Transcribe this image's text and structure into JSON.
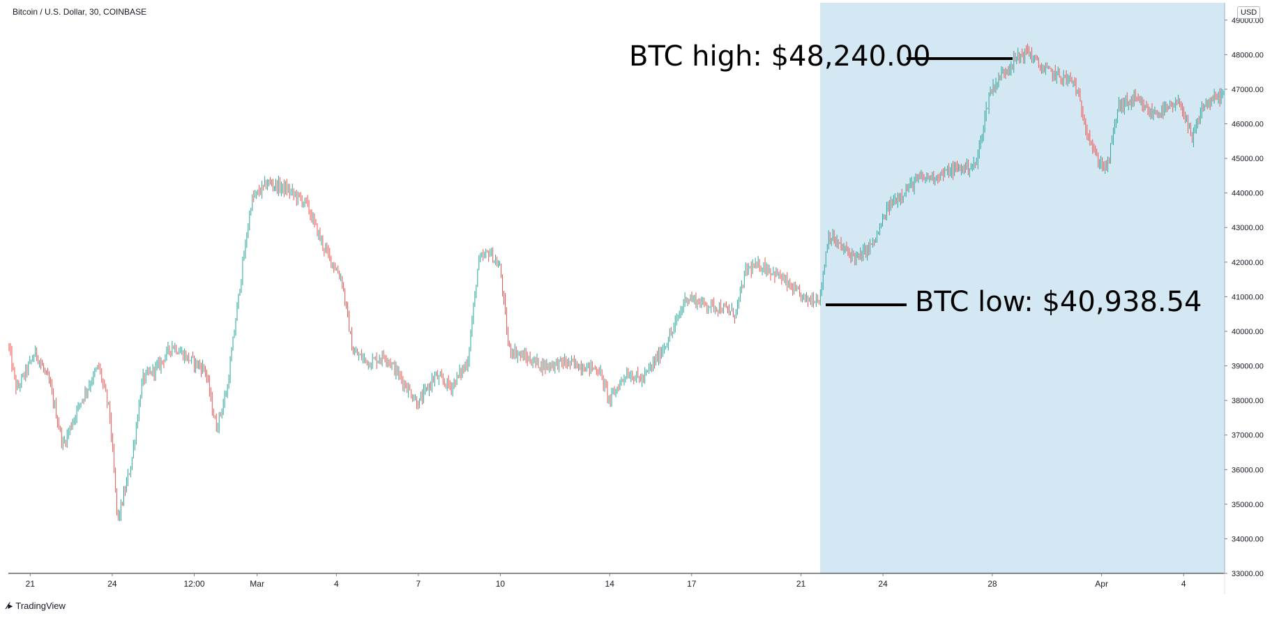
{
  "header": {
    "symbol": "Bitcoin / U.S. Dollar, 30, COINBASE",
    "currency": "USD"
  },
  "footer": {
    "brand": "TradingView"
  },
  "annotations": {
    "high": "BTC high: $48,240.00",
    "low": "BTC low: $40,938.54"
  },
  "colors": {
    "up": "#26a69a",
    "down": "#ef5350",
    "highlight": "#d4e8f3",
    "axis": "#131722"
  },
  "chart_data": {
    "type": "candlestick",
    "title": "Bitcoin / U.S. Dollar, 30, COINBASE",
    "y_unit": "USD",
    "ylim": [
      33000,
      49500
    ],
    "y_ticks": [
      "33000.00",
      "34000.00",
      "35000.00",
      "36000.00",
      "37000.00",
      "38000.00",
      "39000.00",
      "40000.00",
      "41000.00",
      "42000.00",
      "43000.00",
      "44000.00",
      "45000.00",
      "46000.00",
      "47000.00",
      "48000.00",
      "49000.00"
    ],
    "x_ticks": [
      {
        "label": "21",
        "t": 0.8
      },
      {
        "label": "24",
        "t": 3.8
      },
      {
        "label": "12:00",
        "t": 6.8
      },
      {
        "label": "Mar",
        "t": 9.1
      },
      {
        "label": "4",
        "t": 12.0
      },
      {
        "label": "7",
        "t": 15.0
      },
      {
        "label": "10",
        "t": 18.0
      },
      {
        "label": "14",
        "t": 22.0
      },
      {
        "label": "17",
        "t": 25.0
      },
      {
        "label": "21",
        "t": 29.0
      },
      {
        "label": "24",
        "t": 32.0
      },
      {
        "label": "28",
        "t": 36.0
      },
      {
        "label": "Apr",
        "t": 40.0
      },
      {
        "label": "4",
        "t": 43.0
      }
    ],
    "highlight_range": [
      29.7,
      44.5
    ],
    "series": [
      {
        "t": 0.0,
        "v": 39600
      },
      {
        "t": 0.3,
        "v": 38300
      },
      {
        "t": 1.0,
        "v": 39400
      },
      {
        "t": 1.5,
        "v": 38500
      },
      {
        "t": 2.0,
        "v": 36700
      },
      {
        "t": 2.6,
        "v": 37900
      },
      {
        "t": 3.3,
        "v": 39000
      },
      {
        "t": 3.7,
        "v": 37700
      },
      {
        "t": 4.0,
        "v": 34500
      },
      {
        "t": 4.5,
        "v": 36200
      },
      {
        "t": 4.9,
        "v": 38600
      },
      {
        "t": 5.5,
        "v": 39000
      },
      {
        "t": 6.0,
        "v": 39600
      },
      {
        "t": 6.6,
        "v": 39200
      },
      {
        "t": 7.2,
        "v": 38900
      },
      {
        "t": 7.6,
        "v": 37200
      },
      {
        "t": 8.0,
        "v": 38300
      },
      {
        "t": 8.5,
        "v": 41500
      },
      {
        "t": 8.9,
        "v": 43800
      },
      {
        "t": 9.5,
        "v": 44300
      },
      {
        "t": 10.2,
        "v": 44100
      },
      {
        "t": 10.9,
        "v": 43700
      },
      {
        "t": 11.5,
        "v": 42500
      },
      {
        "t": 12.2,
        "v": 41500
      },
      {
        "t": 12.6,
        "v": 39400
      },
      {
        "t": 13.2,
        "v": 39100
      },
      {
        "t": 13.8,
        "v": 39300
      },
      {
        "t": 14.4,
        "v": 38600
      },
      {
        "t": 15.0,
        "v": 37900
      },
      {
        "t": 15.6,
        "v": 38700
      },
      {
        "t": 16.2,
        "v": 38400
      },
      {
        "t": 16.8,
        "v": 39100
      },
      {
        "t": 17.2,
        "v": 42000
      },
      {
        "t": 17.6,
        "v": 42300
      },
      {
        "t": 18.0,
        "v": 41800
      },
      {
        "t": 18.3,
        "v": 39500
      },
      {
        "t": 19.0,
        "v": 39200
      },
      {
        "t": 19.6,
        "v": 39000
      },
      {
        "t": 20.3,
        "v": 39100
      },
      {
        "t": 21.0,
        "v": 39000
      },
      {
        "t": 21.6,
        "v": 38900
      },
      {
        "t": 22.0,
        "v": 38000
      },
      {
        "t": 22.6,
        "v": 38800
      },
      {
        "t": 23.2,
        "v": 38600
      },
      {
        "t": 23.8,
        "v": 39300
      },
      {
        "t": 24.3,
        "v": 40000
      },
      {
        "t": 24.8,
        "v": 41000
      },
      {
        "t": 25.4,
        "v": 40800
      },
      {
        "t": 26.0,
        "v": 40700
      },
      {
        "t": 26.6,
        "v": 40500
      },
      {
        "t": 27.0,
        "v": 41800
      },
      {
        "t": 27.6,
        "v": 41900
      },
      {
        "t": 28.2,
        "v": 41600
      },
      {
        "t": 28.7,
        "v": 41200
      },
      {
        "t": 29.2,
        "v": 40900
      },
      {
        "t": 29.7,
        "v": 41000
      },
      {
        "t": 30.0,
        "v": 42800
      },
      {
        "t": 30.5,
        "v": 42400
      },
      {
        "t": 31.1,
        "v": 42100
      },
      {
        "t": 31.7,
        "v": 42600
      },
      {
        "t": 32.2,
        "v": 43600
      },
      {
        "t": 32.7,
        "v": 44000
      },
      {
        "t": 33.3,
        "v": 44400
      },
      {
        "t": 34.0,
        "v": 44500
      },
      {
        "t": 34.7,
        "v": 44700
      },
      {
        "t": 35.4,
        "v": 44800
      },
      {
        "t": 35.9,
        "v": 46900
      },
      {
        "t": 36.4,
        "v": 47500
      },
      {
        "t": 36.9,
        "v": 47900
      },
      {
        "t": 37.3,
        "v": 48100
      },
      {
        "t": 37.8,
        "v": 47600
      },
      {
        "t": 38.4,
        "v": 47400
      },
      {
        "t": 39.0,
        "v": 47200
      },
      {
        "t": 39.4,
        "v": 46000
      },
      {
        "t": 39.8,
        "v": 45000
      },
      {
        "t": 40.2,
        "v": 44700
      },
      {
        "t": 40.6,
        "v": 46500
      },
      {
        "t": 41.2,
        "v": 46700
      },
      {
        "t": 41.8,
        "v": 46300
      },
      {
        "t": 42.4,
        "v": 46400
      },
      {
        "t": 42.9,
        "v": 46600
      },
      {
        "t": 43.3,
        "v": 45500
      },
      {
        "t": 43.7,
        "v": 46500
      },
      {
        "t": 44.3,
        "v": 46800
      },
      {
        "t": 44.5,
        "v": 46900
      }
    ]
  }
}
